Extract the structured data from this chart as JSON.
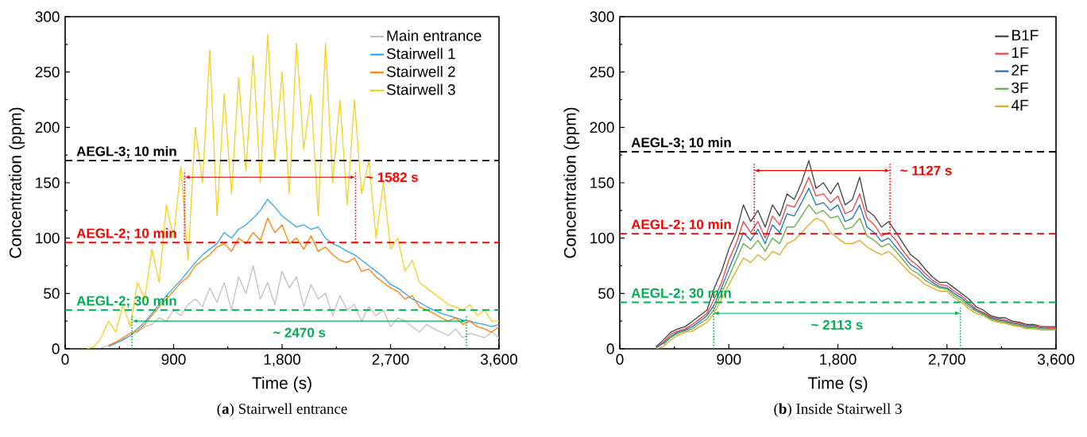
{
  "chart_data": [
    {
      "type": "line",
      "title": "(**a**) Stairwell entrance",
      "xlabel": "Time (s)",
      "ylabel": "Concentration (ppm)",
      "xlim": [
        0,
        3600
      ],
      "ylim": [
        0,
        300
      ],
      "xticks": [
        0,
        900,
        {
          "value": 1800,
          "label": "1,800"
        },
        {
          "value": 2700,
          "label": "2,700"
        },
        {
          "value": 3600,
          "label": "3,600"
        }
      ],
      "yticks": [
        0,
        50,
        100,
        150,
        200,
        250,
        300
      ],
      "legend": "top right",
      "x": [
        180,
        240,
        300,
        360,
        420,
        480,
        540,
        600,
        660,
        720,
        780,
        840,
        900,
        960,
        1020,
        1080,
        1140,
        1200,
        1260,
        1320,
        1380,
        1440,
        1500,
        1560,
        1620,
        1680,
        1740,
        1800,
        1860,
        1920,
        1980,
        2040,
        2100,
        2160,
        2220,
        2280,
        2340,
        2400,
        2460,
        2520,
        2580,
        2640,
        2700,
        2760,
        2820,
        2880,
        2940,
        3000,
        3060,
        3120,
        3180,
        3240,
        3300,
        3360,
        3420,
        3480,
        3540,
        3600
      ],
      "series": [
        {
          "name": "Main entrance",
          "color": "#c0c0c0",
          "values": [
            null,
            null,
            1,
            3,
            6,
            9,
            12,
            15,
            20,
            22,
            28,
            25,
            35,
            30,
            40,
            45,
            38,
            55,
            42,
            60,
            35,
            65,
            50,
            75,
            45,
            60,
            40,
            70,
            55,
            65,
            38,
            58,
            45,
            50,
            30,
            48,
            35,
            40,
            25,
            38,
            30,
            35,
            20,
            28,
            25,
            20,
            15,
            22,
            18,
            15,
            12,
            18,
            10,
            14,
            12,
            10,
            15,
            10
          ]
        },
        {
          "name": "Stairwell 1",
          "color": "#2fa4f5",
          "values": [
            null,
            null,
            null,
            2,
            5,
            8,
            12,
            18,
            24,
            32,
            40,
            48,
            55,
            62,
            70,
            78,
            85,
            90,
            95,
            105,
            100,
            108,
            112,
            118,
            125,
            135,
            128,
            120,
            115,
            110,
            112,
            108,
            110,
            100,
            95,
            92,
            88,
            85,
            80,
            75,
            70,
            65,
            58,
            55,
            50,
            45,
            42,
            38,
            35,
            32,
            30,
            28,
            26,
            25,
            23,
            22,
            20,
            22
          ]
        },
        {
          "name": "Stairwell 2",
          "color": "#ff8000",
          "values": [
            null,
            null,
            null,
            3,
            6,
            10,
            14,
            16,
            22,
            30,
            38,
            45,
            52,
            60,
            65,
            75,
            80,
            85,
            92,
            95,
            88,
            100,
            95,
            105,
            98,
            118,
            105,
            112,
            95,
            100,
            90,
            102,
            88,
            92,
            85,
            80,
            78,
            82,
            70,
            72,
            65,
            60,
            55,
            52,
            45,
            48,
            38,
            35,
            32,
            28,
            25,
            28,
            22,
            25,
            20,
            18,
            15,
            20
          ]
        },
        {
          "name": "Stairwell 3",
          "color": "#f5d020",
          "values": [
            0,
            2,
            10,
            25,
            15,
            40,
            20,
            60,
            45,
            90,
            60,
            130,
            100,
            165,
            80,
            200,
            150,
            270,
            120,
            230,
            140,
            245,
            160,
            265,
            150,
            284,
            170,
            250,
            140,
            276,
            180,
            230,
            120,
            276,
            150,
            225,
            130,
            225,
            140,
            170,
            100,
            150,
            90,
            100,
            70,
            80,
            60,
            55,
            50,
            45,
            40,
            38,
            35,
            40,
            30,
            35,
            25,
            25
          ]
        }
      ],
      "ref_lines": [
        {
          "axis": "y",
          "value": 170,
          "label": "AEGL-3; 10 min",
          "color": "#000000",
          "line_style": "dashed"
        },
        {
          "axis": "y",
          "value": 96,
          "label": "AEGL-2; 10 min",
          "color": "#ff0000",
          "line_style": "dashed"
        },
        {
          "axis": "y",
          "value": 35,
          "label": "AEGL-2; 30 min",
          "color": "#00b050",
          "line_style": "dashed"
        },
        {
          "axis": "x",
          "value": 990,
          "color": "#ff0000",
          "line_style": "dotted"
        },
        {
          "axis": "x",
          "value": 2410,
          "color": "#ff0000",
          "line_style": "dotted"
        },
        {
          "axis": "x",
          "value": 555,
          "color": "#00b050",
          "line_style": "dotted"
        },
        {
          "axis": "x",
          "value": 3330,
          "color": "#00b050",
          "line_style": "dotted"
        }
      ],
      "annotations": [
        {
          "text": "~ 1582 s",
          "x": 2410,
          "y": 155
        },
        "~ 2470 s"
      ]
    },
    {
      "type": "line",
      "title": "(**b**) Inside Stairwell 3",
      "xlabel": "Time (s)",
      "ylabel": "Concentration (ppm)",
      "xlim": [
        0,
        3600
      ],
      "ylim": [
        0,
        300
      ],
      "xticks": [
        0,
        900,
        {
          "value": 1800,
          "label": "1,800"
        },
        {
          "value": 2700,
          "label": "2,700"
        },
        {
          "value": 3600,
          "label": "3,600"
        }
      ],
      "yticks": [
        0,
        50,
        100,
        150,
        200,
        250,
        300
      ],
      "legend": "top right",
      "x": [
        300,
        360,
        420,
        480,
        540,
        600,
        660,
        720,
        780,
        840,
        900,
        960,
        1020,
        1080,
        1140,
        1200,
        1260,
        1320,
        1380,
        1440,
        1500,
        1560,
        1620,
        1680,
        1740,
        1800,
        1860,
        1920,
        1980,
        2040,
        2100,
        2160,
        2220,
        2280,
        2340,
        2400,
        2460,
        2520,
        2580,
        2640,
        2700,
        2760,
        2820,
        2880,
        2940,
        3000,
        3060,
        3120,
        3180,
        3240,
        3300,
        3360,
        3420,
        3480,
        3540,
        3600
      ],
      "series": [
        {
          "name": "B1F",
          "color": "#404040",
          "values": [
            2,
            8,
            15,
            18,
            20,
            25,
            30,
            35,
            55,
            70,
            90,
            105,
            130,
            115,
            125,
            110,
            130,
            120,
            140,
            135,
            150,
            170,
            145,
            150,
            140,
            150,
            130,
            135,
            155,
            125,
            120,
            110,
            115,
            105,
            95,
            85,
            80,
            72,
            65,
            60,
            60,
            55,
            50,
            45,
            38,
            35,
            30,
            28,
            28,
            25,
            24,
            22,
            22,
            20,
            20,
            20
          ]
        },
        {
          "name": "1F",
          "color": "#f04040",
          "values": [
            1,
            6,
            13,
            16,
            18,
            22,
            27,
            32,
            45,
            60,
            80,
            95,
            115,
            105,
            115,
            100,
            120,
            112,
            130,
            128,
            140,
            155,
            138,
            140,
            132,
            138,
            122,
            125,
            140,
            118,
            112,
            102,
            105,
            98,
            88,
            80,
            75,
            68,
            62,
            58,
            57,
            52,
            48,
            42,
            36,
            33,
            29,
            27,
            26,
            24,
            23,
            21,
            21,
            20,
            19,
            19
          ]
        },
        {
          "name": "2F",
          "color": "#2070c0",
          "values": [
            1,
            5,
            11,
            15,
            17,
            20,
            25,
            30,
            40,
            55,
            72,
            88,
            105,
            98,
            108,
            95,
            112,
            105,
            122,
            120,
            132,
            145,
            130,
            132,
            125,
            130,
            115,
            118,
            130,
            110,
            105,
            97,
            100,
            92,
            84,
            76,
            72,
            65,
            60,
            56,
            55,
            50,
            46,
            40,
            35,
            32,
            28,
            26,
            25,
            23,
            22,
            20,
            20,
            19,
            18,
            18
          ]
        },
        {
          "name": "3F",
          "color": "#60b040",
          "values": [
            null,
            4,
            10,
            14,
            16,
            18,
            23,
            27,
            36,
            50,
            65,
            80,
            95,
            90,
            98,
            88,
            100,
            95,
            110,
            110,
            120,
            130,
            122,
            125,
            118,
            120,
            108,
            110,
            118,
            102,
            98,
            92,
            95,
            88,
            80,
            72,
            68,
            62,
            58,
            55,
            54,
            48,
            44,
            38,
            34,
            31,
            27,
            25,
            24,
            22,
            21,
            19,
            19,
            18,
            18,
            18
          ]
        },
        {
          "name": "4F",
          "color": "#e0a820",
          "values": [
            0,
            2,
            8,
            12,
            15,
            16,
            20,
            24,
            32,
            45,
            58,
            70,
            82,
            78,
            85,
            80,
            88,
            85,
            95,
            98,
            105,
            112,
            118,
            115,
            105,
            100,
            95,
            95,
            98,
            92,
            88,
            85,
            88,
            82,
            75,
            68,
            64,
            58,
            55,
            52,
            52,
            46,
            42,
            36,
            32,
            30,
            26,
            24,
            23,
            21,
            20,
            18,
            18,
            17,
            17,
            17
          ]
        }
      ],
      "ref_lines": [
        {
          "axis": "y",
          "value": 178,
          "label": "AEGL-3; 10 min",
          "color": "#000000",
          "line_style": "dashed"
        },
        {
          "axis": "y",
          "value": 104,
          "label": "AEGL-2; 10 min",
          "color": "#ff0000",
          "line_style": "dashed"
        },
        {
          "axis": "y",
          "value": 42,
          "label": "AEGL-2; 30 min",
          "color": "#00b050",
          "line_style": "dashed"
        },
        {
          "axis": "x",
          "value": 1110,
          "color": "#ff0000",
          "line_style": "dotted"
        },
        {
          "axis": "x",
          "value": 2230,
          "color": "#ff0000",
          "line_style": "dotted"
        },
        {
          "axis": "x",
          "value": 775,
          "color": "#00b050",
          "line_style": "dotted"
        },
        {
          "axis": "x",
          "value": 2810,
          "color": "#00b050",
          "line_style": "dotted"
        }
      ],
      "annotations": [
        {
          "text": "~ 1127 s",
          "x": 2230,
          "y": 161
        },
        "~ 2113 s"
      ]
    }
  ]
}
